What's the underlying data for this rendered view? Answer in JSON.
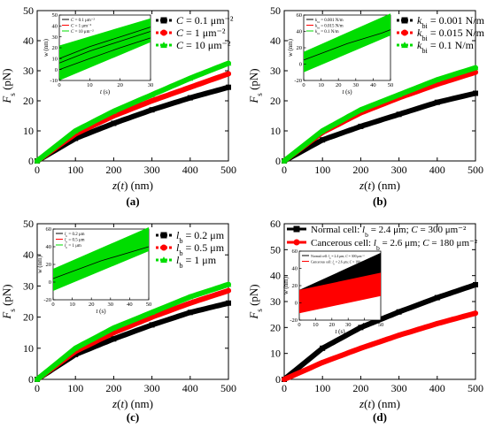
{
  "chart_data": [
    {
      "type": "line",
      "panel": "(a)",
      "xlabel": "z(t) (nm)",
      "ylabel": "F_s (pN)",
      "xlim": [
        0,
        500
      ],
      "ylim": [
        0,
        50
      ],
      "xticks": [
        0,
        100,
        200,
        300,
        400,
        500
      ],
      "yticks": [
        0,
        10,
        20,
        30,
        40,
        50
      ],
      "legend_position": "top-right",
      "series": [
        {
          "name": "C = 0.1 μm⁻²",
          "color": "#000000",
          "marker": "square",
          "x": [
            0,
            100,
            200,
            300,
            400,
            500
          ],
          "y": [
            0,
            7.5,
            12.5,
            17,
            21,
            24.5
          ]
        },
        {
          "name": "C = 1 μm⁻²",
          "color": "#ff0000",
          "marker": "circle",
          "x": [
            0,
            100,
            200,
            300,
            400,
            500
          ],
          "y": [
            0,
            9,
            15,
            20,
            24.5,
            29
          ]
        },
        {
          "name": "C = 10 μm⁻²",
          "color": "#00dd00",
          "marker": "triangle",
          "x": [
            0,
            100,
            200,
            300,
            400,
            500
          ],
          "y": [
            0,
            10,
            16.5,
            22,
            27.5,
            32.5
          ]
        }
      ],
      "inset": {
        "xlabel": "t (s)",
        "ylabel": "w (nm)",
        "xlim": [
          0,
          30
        ],
        "ylim": [
          -10,
          50
        ],
        "xticks": [
          0,
          10,
          20,
          30
        ],
        "yticks": [
          -10,
          0,
          10,
          20,
          30,
          40,
          50
        ],
        "legend": [
          "C = 0.1 μm⁻²",
          "C = 1 μm⁻²",
          "C = 10 μm⁻²"
        ],
        "band": {
          "color": "#00dd00",
          "lower": [
            [
              0,
              -10
            ],
            [
              30,
              25
            ]
          ],
          "upper": [
            [
              0,
              22
            ],
            [
              30,
              47
            ]
          ]
        },
        "curves": [
          {
            "color": "#000000",
            "points": [
              [
                0,
                6
              ],
              [
                10,
                17
              ],
              [
                20,
                26
              ],
              [
                30,
                35
              ]
            ]
          },
          {
            "color": "#000000",
            "points": [
              [
                0,
                0
              ],
              [
                10,
                10
              ],
              [
                20,
                20
              ],
              [
                30,
                29
              ]
            ]
          },
          {
            "color": "#000000",
            "points": [
              [
                0,
                10
              ],
              [
                10,
                21
              ],
              [
                20,
                30
              ],
              [
                30,
                39
              ]
            ]
          }
        ]
      }
    },
    {
      "type": "line",
      "panel": "(b)",
      "xlabel": "z(t) (nm)",
      "ylabel": "F_s (pN)",
      "xlim": [
        0,
        500
      ],
      "ylim": [
        0,
        50
      ],
      "xticks": [
        0,
        100,
        200,
        300,
        400,
        500
      ],
      "yticks": [
        0,
        10,
        20,
        30,
        40,
        50
      ],
      "legend_position": "top-right",
      "series": [
        {
          "name": "k_bi = 0.001 N/m",
          "color": "#000000",
          "marker": "square",
          "x": [
            0,
            100,
            200,
            300,
            400,
            500
          ],
          "y": [
            0,
            7,
            11.5,
            15.5,
            19.5,
            22.5
          ]
        },
        {
          "name": "k_bi = 0.015 N/m",
          "color": "#ff0000",
          "marker": "circle",
          "x": [
            0,
            100,
            200,
            300,
            400,
            500
          ],
          "y": [
            0,
            9.5,
            16,
            21,
            25.5,
            29.5
          ]
        },
        {
          "name": "k_bi = 0.1 N/m",
          "color": "#00dd00",
          "marker": "triangle",
          "x": [
            0,
            100,
            200,
            300,
            400,
            500
          ],
          "y": [
            0,
            10,
            17,
            22,
            27,
            31
          ]
        }
      ],
      "inset": {
        "xlabel": "t (s)",
        "ylabel": "w (nm)",
        "xlim": [
          0,
          50
        ],
        "ylim": [
          -20,
          60
        ],
        "xticks": [
          0,
          10,
          20,
          30,
          40,
          50
        ],
        "yticks": [
          -20,
          0,
          20,
          40,
          60
        ],
        "legend": [
          "k_bi = 0.001 N/m",
          "k_bi = 0.015 N/m",
          "k_bi = 0.1 N/m"
        ],
        "band": {
          "color": "#00dd00",
          "lower": [
            [
              0,
              -10
            ],
            [
              50,
              35
            ]
          ],
          "upper": [
            [
              0,
              15
            ],
            [
              50,
              62
            ]
          ]
        },
        "curves": [
          {
            "color": "#000000",
            "points": [
              [
                0,
                5
              ],
              [
                25,
                25
              ],
              [
                45,
                38
              ],
              [
                50,
                42
              ]
            ]
          }
        ]
      }
    },
    {
      "type": "line",
      "panel": "(c)",
      "xlabel": "z(t) (nm)",
      "ylabel": "F_s (pN)",
      "xlim": [
        0,
        500
      ],
      "ylim": [
        0,
        50
      ],
      "xticks": [
        0,
        100,
        200,
        300,
        400,
        500
      ],
      "yticks": [
        0,
        10,
        20,
        30,
        40,
        50
      ],
      "legend_position": "top-right",
      "series": [
        {
          "name": "l_b = 0.2 μm",
          "color": "#000000",
          "marker": "square",
          "x": [
            0,
            100,
            200,
            300,
            400,
            500
          ],
          "y": [
            0,
            8,
            13,
            17.5,
            21.5,
            24.5
          ]
        },
        {
          "name": "l_b = 0.5 μm",
          "color": "#ff0000",
          "marker": "circle",
          "x": [
            0,
            100,
            200,
            300,
            400,
            500
          ],
          "y": [
            0,
            9,
            15,
            20,
            24.5,
            28.5
          ]
        },
        {
          "name": "l_b = 1 μm",
          "color": "#00dd00",
          "marker": "triangle",
          "x": [
            0,
            100,
            200,
            300,
            400,
            500
          ],
          "y": [
            0,
            10,
            16.5,
            21.5,
            26.5,
            30.5
          ]
        }
      ],
      "inset": {
        "xlabel": "t (s)",
        "ylabel": "w (nm)",
        "xlim": [
          0,
          50
        ],
        "ylim": [
          -20,
          60
        ],
        "xticks": [
          0,
          10,
          20,
          30,
          40,
          50
        ],
        "yticks": [
          -20,
          0,
          20,
          40,
          60
        ],
        "legend": [
          "l_b = 0.2 μm",
          "l_b = 0.5 μm",
          "l_b = 1 μm"
        ],
        "band": {
          "color": "#00dd00",
          "lower": [
            [
              0,
              -10
            ],
            [
              50,
              35
            ]
          ],
          "upper": [
            [
              0,
              15
            ],
            [
              50,
              62
            ]
          ]
        },
        "curves": [
          {
            "color": "#000000",
            "points": [
              [
                0,
                4
              ],
              [
                25,
                24
              ],
              [
                50,
                40
              ]
            ]
          }
        ]
      }
    },
    {
      "type": "line",
      "panel": "(d)",
      "xlabel": "z(t) (nm)",
      "ylabel": "F_s (pN)",
      "xlim": [
        0,
        500
      ],
      "ylim": [
        0,
        60
      ],
      "xticks": [
        0,
        100,
        200,
        300,
        400,
        500
      ],
      "yticks": [
        0,
        10,
        20,
        30,
        40,
        50,
        60
      ],
      "legend_position": "top",
      "series": [
        {
          "name": "Normal cell: l_b = 2.4 μm; C = 300 μm⁻²",
          "color": "#000000",
          "marker": "square",
          "x": [
            0,
            100,
            200,
            300,
            400,
            500
          ],
          "y": [
            0,
            12,
            20,
            26,
            31.5,
            36.5
          ]
        },
        {
          "name": "Cancerous cell: l_b = 2.6 μm; C = 180 μm⁻²",
          "color": "#ff0000",
          "marker": "circle",
          "x": [
            0,
            100,
            200,
            300,
            400,
            500
          ],
          "y": [
            0,
            6.5,
            12,
            17,
            21.5,
            25.5
          ]
        }
      ],
      "inset": {
        "xlabel": "t (s)",
        "ylabel": "w (nm)",
        "xlim": [
          0,
          50
        ],
        "ylim": [
          -20,
          60
        ],
        "xticks": [
          0,
          10,
          20,
          30,
          40,
          50
        ],
        "yticks": [
          -20,
          0,
          20,
          40,
          60
        ],
        "legend": [
          "Normal cell: l_b = 2.4 μm; C = 300 μm⁻²",
          "Cancerous cell: l_b = 2.6 μm; C = 180 μm⁻²"
        ],
        "bands": [
          {
            "color": "#000000",
            "lower": [
              [
                0,
                -10
              ],
              [
                50,
                30
              ]
            ],
            "upper": [
              [
                0,
                15
              ],
              [
                50,
                58
              ]
            ]
          },
          {
            "color": "#ff0000",
            "lower": [
              [
                0,
                -12
              ],
              [
                50,
                8
              ]
            ],
            "upper": [
              [
                0,
                15
              ],
              [
                50,
                35
              ]
            ]
          }
        ]
      }
    }
  ]
}
